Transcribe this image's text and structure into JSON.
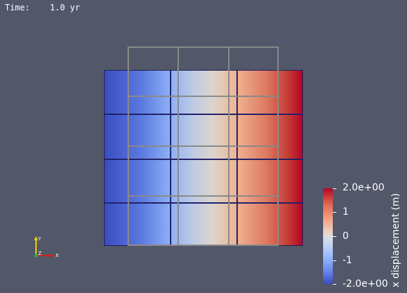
{
  "time_annotation": {
    "label": "Time:",
    "value": "1.0 yr"
  },
  "colorbar": {
    "title": "x displacement (m)",
    "ticks": [
      "2.0e+00",
      "1",
      "0",
      "-1",
      "-2.0e+00"
    ],
    "range": [
      -2.0,
      2.0
    ]
  },
  "orientation_axes": {
    "x": "X",
    "y": "Y",
    "z": "Z"
  },
  "colors": {
    "background": "#525769",
    "colormap_low": "#3b4cc0",
    "colormap_mid": "#dddddd",
    "colormap_high": "#b40426",
    "wireframe": "#8a8a8a",
    "mesh_edges": "#21226a"
  }
}
